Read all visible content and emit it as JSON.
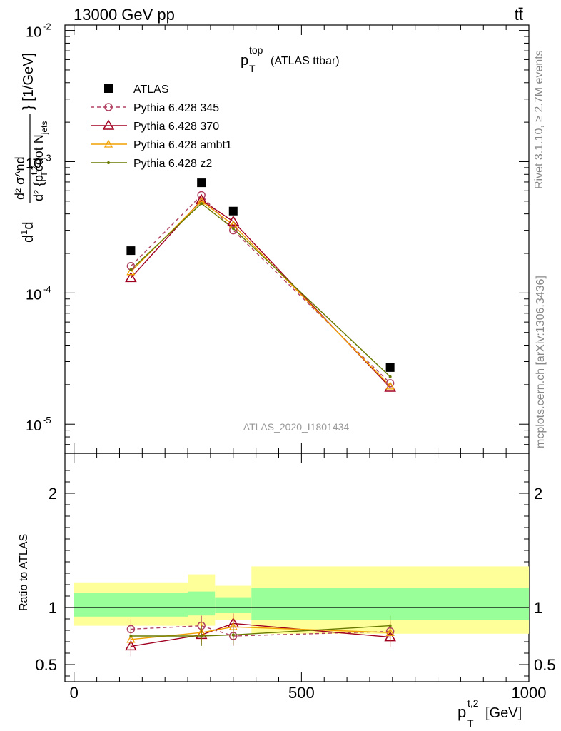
{
  "header": {
    "energy_label": "13000 GeV pp",
    "process_label": "tt̄"
  },
  "side_labels": {
    "rivet": "Rivet 3.1.10, ≥ 2.7M events",
    "mcplots": "mcplots.cern.ch [arXiv:1306.3436]"
  },
  "chart_data": [
    {
      "type": "scatter",
      "title_main": "p",
      "title_sup": "top",
      "title_sub": "T",
      "title_suffix": "(ATLAS ttbar)",
      "ylabel": "d²σ / d²{p_T^t,2 cdot N_jets} [1/GeV]",
      "ylabel_unit": "} [1/GeV]",
      "yscale": "log",
      "ylim": [
        6e-06,
        0.011
      ],
      "xlim": [
        -20,
        1000
      ],
      "ytick_labels": [
        "10",
        "10",
        "10",
        "10"
      ],
      "ytick_exponents": [
        "-2",
        "-3",
        "-4",
        "-5"
      ],
      "ytick_values": [
        0.01,
        0.001,
        0.0001,
        1e-05
      ],
      "watermark": "ATLAS_2020_I1801434",
      "x": [
        125,
        280,
        350,
        695
      ],
      "series": [
        {
          "name": "ATLAS",
          "values": [
            0.00021,
            0.00069,
            0.00042,
            2.7e-05
          ],
          "color": "#000000",
          "marker": "square",
          "style": "none"
        },
        {
          "name": "Pythia 6.428 345",
          "values": [
            0.00016,
            0.000555,
            0.0003,
            2.05e-05
          ],
          "color": "#b04060",
          "marker": "circle",
          "style": "dashed"
        },
        {
          "name": "Pythia 6.428 370",
          "values": [
            0.00013,
            0.00051,
            0.00035,
            1.9e-05
          ],
          "color": "#a00020",
          "marker": "triangle",
          "style": "solid"
        },
        {
          "name": "Pythia 6.428 ambt1",
          "values": [
            0.000145,
            0.0005,
            0.00033,
            1.95e-05
          ],
          "color": "#f0a000",
          "marker": "triangle-small",
          "style": "solid"
        },
        {
          "name": "Pythia 6.428 z2",
          "values": [
            0.00015,
            0.00048,
            0.00031,
            2.3e-05
          ],
          "color": "#6a7a00",
          "marker": "dot",
          "style": "solid"
        }
      ]
    },
    {
      "type": "scatter",
      "ylabel": "Ratio to ATLAS",
      "xlabel_main": "p",
      "xlabel_sup": "t,2",
      "xlabel_sub": "T",
      "xlabel_unit": "[GeV]",
      "ylim": [
        0.35,
        2.35
      ],
      "xlim": [
        -20,
        1000
      ],
      "ytick_labels": [
        "2",
        "1",
        "0.5"
      ],
      "ytick_values": [
        2,
        1,
        0.5
      ],
      "xtick_labels": [
        "0",
        "500",
        "1000"
      ],
      "xtick_values": [
        0,
        500,
        1000
      ],
      "bands": [
        {
          "x0": 0,
          "x1": 250,
          "outer": [
            0.84,
            1.22
          ],
          "inner": [
            0.92,
            1.13
          ]
        },
        {
          "x0": 250,
          "x1": 310,
          "outer": [
            0.84,
            1.29
          ],
          "inner": [
            0.93,
            1.14
          ]
        },
        {
          "x0": 310,
          "x1": 390,
          "outer": [
            0.89,
            1.19
          ],
          "inner": [
            0.95,
            1.09
          ]
        },
        {
          "x0": 390,
          "x1": 1000,
          "outer": [
            0.77,
            1.36
          ],
          "inner": [
            0.89,
            1.17
          ]
        }
      ],
      "x": [
        125,
        280,
        350,
        695
      ],
      "series": [
        {
          "name": "Pythia 6.428 345",
          "values": [
            0.81,
            0.84,
            0.75,
            0.79
          ]
        },
        {
          "name": "Pythia 6.428 370",
          "values": [
            0.66,
            0.76,
            0.86,
            0.74
          ]
        },
        {
          "name": "Pythia 6.428 ambt1",
          "values": [
            0.72,
            0.78,
            0.83,
            0.78
          ]
        },
        {
          "name": "Pythia 6.428 z2",
          "values": [
            0.75,
            0.75,
            0.76,
            0.84
          ]
        }
      ]
    }
  ]
}
